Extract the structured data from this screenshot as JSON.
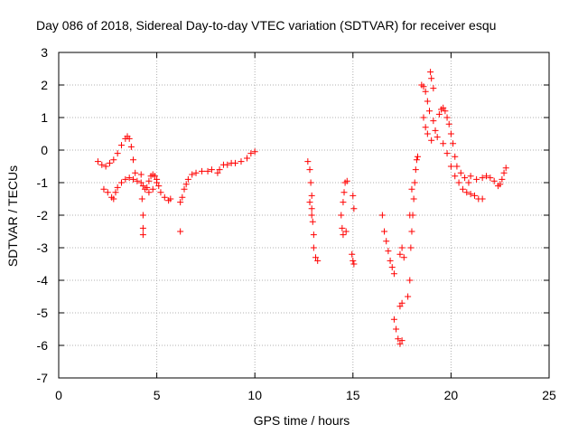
{
  "chart_data": {
    "type": "scatter",
    "title": "Day 086 of 2018, Sidereal Day-to-day VTEC variation (SDTVAR) for receiver esqu",
    "xlabel": "GPS time / hours",
    "ylabel": "SDTVAR / TECUs",
    "xlim": [
      0,
      25
    ],
    "ylim": [
      -7,
      3
    ],
    "xticks": [
      "0",
      "5",
      "10",
      "15",
      "20",
      "25"
    ],
    "yticks": [
      "3",
      "2",
      "1",
      "0",
      "-1",
      "-2",
      "-3",
      "-4",
      "-5",
      "-6",
      "-7"
    ],
    "grid": true,
    "marker": "+",
    "series_color": "#ff0000",
    "series": [
      {
        "name": "SDTVAR",
        "points": [
          [
            2.0,
            -0.35
          ],
          [
            2.2,
            -0.45
          ],
          [
            2.4,
            -0.5
          ],
          [
            2.6,
            -0.4
          ],
          [
            2.8,
            -0.3
          ],
          [
            3.0,
            -0.1
          ],
          [
            3.2,
            0.15
          ],
          [
            3.4,
            0.35
          ],
          [
            3.5,
            0.42
          ],
          [
            3.6,
            0.35
          ],
          [
            3.7,
            0.1
          ],
          [
            3.8,
            -0.3
          ],
          [
            3.9,
            -0.7
          ],
          [
            2.3,
            -1.2
          ],
          [
            2.5,
            -1.3
          ],
          [
            2.7,
            -1.45
          ],
          [
            2.8,
            -1.5
          ],
          [
            2.9,
            -1.3
          ],
          [
            3.0,
            -1.15
          ],
          [
            3.2,
            -1.0
          ],
          [
            3.4,
            -0.9
          ],
          [
            3.6,
            -0.85
          ],
          [
            3.8,
            -0.9
          ],
          [
            4.0,
            -0.95
          ],
          [
            4.2,
            -1.0
          ],
          [
            4.25,
            -1.5
          ],
          [
            4.3,
            -2.0
          ],
          [
            4.3,
            -2.4
          ],
          [
            4.3,
            -2.6
          ],
          [
            4.2,
            -0.75
          ],
          [
            4.3,
            -1.1
          ],
          [
            4.4,
            -1.2
          ],
          [
            4.5,
            -1.15
          ],
          [
            4.6,
            -0.95
          ],
          [
            4.7,
            -0.8
          ],
          [
            4.8,
            -0.75
          ],
          [
            4.9,
            -0.8
          ],
          [
            5.0,
            -0.9
          ],
          [
            5.1,
            -1.1
          ],
          [
            5.2,
            -1.3
          ],
          [
            5.4,
            -1.45
          ],
          [
            5.6,
            -1.55
          ],
          [
            5.7,
            -1.5
          ],
          [
            4.6,
            -1.3
          ],
          [
            4.8,
            -1.2
          ],
          [
            5.0,
            -1.0
          ],
          [
            6.2,
            -2.5
          ],
          [
            6.2,
            -1.6
          ],
          [
            6.3,
            -1.45
          ],
          [
            6.4,
            -1.2
          ],
          [
            6.5,
            -1.05
          ],
          [
            6.6,
            -0.9
          ],
          [
            6.8,
            -0.75
          ],
          [
            7.0,
            -0.7
          ],
          [
            7.3,
            -0.65
          ],
          [
            7.6,
            -0.65
          ],
          [
            7.8,
            -0.6
          ],
          [
            8.1,
            -0.7
          ],
          [
            8.2,
            -0.6
          ],
          [
            8.4,
            -0.45
          ],
          [
            8.6,
            -0.45
          ],
          [
            8.8,
            -0.4
          ],
          [
            9.0,
            -0.4
          ],
          [
            9.3,
            -0.35
          ],
          [
            9.6,
            -0.25
          ],
          [
            9.8,
            -0.1
          ],
          [
            10.0,
            -0.05
          ],
          [
            12.7,
            -0.35
          ],
          [
            12.8,
            -0.6
          ],
          [
            12.85,
            -1.0
          ],
          [
            12.9,
            -1.4
          ],
          [
            12.9,
            -1.8
          ],
          [
            12.95,
            -2.2
          ],
          [
            13.0,
            -2.6
          ],
          [
            13.0,
            -3.0
          ],
          [
            13.1,
            -3.3
          ],
          [
            13.2,
            -3.4
          ],
          [
            12.8,
            -1.6
          ],
          [
            12.9,
            -2.0
          ],
          [
            14.4,
            -2.0
          ],
          [
            14.45,
            -2.4
          ],
          [
            14.5,
            -2.6
          ],
          [
            14.5,
            -1.6
          ],
          [
            14.55,
            -1.3
          ],
          [
            14.6,
            -1.0
          ],
          [
            14.7,
            -0.95
          ],
          [
            14.65,
            -2.5
          ],
          [
            14.95,
            -3.2
          ],
          [
            15.0,
            -3.4
          ],
          [
            15.05,
            -3.5
          ],
          [
            15.0,
            -1.4
          ],
          [
            15.05,
            -1.8
          ],
          [
            16.5,
            -2.0
          ],
          [
            16.6,
            -2.5
          ],
          [
            16.7,
            -2.8
          ],
          [
            16.8,
            -3.1
          ],
          [
            16.9,
            -3.4
          ],
          [
            17.0,
            -3.6
          ],
          [
            17.1,
            -3.8
          ],
          [
            17.1,
            -5.2
          ],
          [
            17.2,
            -5.5
          ],
          [
            17.3,
            -5.8
          ],
          [
            17.4,
            -5.95
          ],
          [
            17.5,
            -5.85
          ],
          [
            17.4,
            -4.8
          ],
          [
            17.5,
            -4.7
          ],
          [
            17.4,
            -3.2
          ],
          [
            17.5,
            -3.0
          ],
          [
            17.6,
            -3.3
          ],
          [
            17.8,
            -4.5
          ],
          [
            17.9,
            -4.0
          ],
          [
            17.95,
            -3.0
          ],
          [
            18.0,
            -2.5
          ],
          [
            18.05,
            -2.0
          ],
          [
            18.1,
            -1.5
          ],
          [
            18.15,
            -1.0
          ],
          [
            18.2,
            -0.6
          ],
          [
            18.25,
            -0.3
          ],
          [
            18.3,
            -0.2
          ],
          [
            17.9,
            -2.0
          ],
          [
            18.0,
            -1.2
          ],
          [
            18.5,
            2.0
          ],
          [
            18.6,
            1.95
          ],
          [
            18.7,
            1.8
          ],
          [
            18.8,
            1.5
          ],
          [
            18.9,
            1.2
          ],
          [
            18.95,
            2.4
          ],
          [
            19.0,
            2.2
          ],
          [
            19.1,
            1.9
          ],
          [
            18.6,
            1.0
          ],
          [
            18.7,
            0.7
          ],
          [
            18.8,
            0.5
          ],
          [
            19.0,
            0.3
          ],
          [
            19.1,
            0.9
          ],
          [
            19.2,
            0.6
          ],
          [
            19.3,
            0.4
          ],
          [
            19.4,
            1.1
          ],
          [
            19.5,
            1.25
          ],
          [
            19.6,
            1.3
          ],
          [
            19.7,
            1.2
          ],
          [
            19.8,
            1.0
          ],
          [
            19.9,
            0.8
          ],
          [
            20.0,
            0.5
          ],
          [
            20.1,
            0.2
          ],
          [
            20.2,
            -0.2
          ],
          [
            20.3,
            -0.5
          ],
          [
            20.5,
            -0.7
          ],
          [
            20.7,
            -0.85
          ],
          [
            20.9,
            -1.0
          ],
          [
            19.6,
            0.2
          ],
          [
            19.8,
            -0.1
          ],
          [
            20.0,
            -0.5
          ],
          [
            20.2,
            -0.8
          ],
          [
            20.4,
            -1.0
          ],
          [
            20.6,
            -1.2
          ],
          [
            20.8,
            -1.3
          ],
          [
            21.0,
            -1.35
          ],
          [
            21.2,
            -1.4
          ],
          [
            21.4,
            -1.5
          ],
          [
            21.6,
            -1.5
          ],
          [
            21.0,
            -0.8
          ],
          [
            21.3,
            -0.9
          ],
          [
            21.6,
            -0.85
          ],
          [
            21.8,
            -0.8
          ],
          [
            22.0,
            -0.85
          ],
          [
            22.2,
            -0.95
          ],
          [
            22.4,
            -1.1
          ],
          [
            22.5,
            -1.05
          ],
          [
            22.6,
            -0.9
          ],
          [
            22.7,
            -0.7
          ],
          [
            22.8,
            -0.55
          ]
        ]
      }
    ]
  }
}
